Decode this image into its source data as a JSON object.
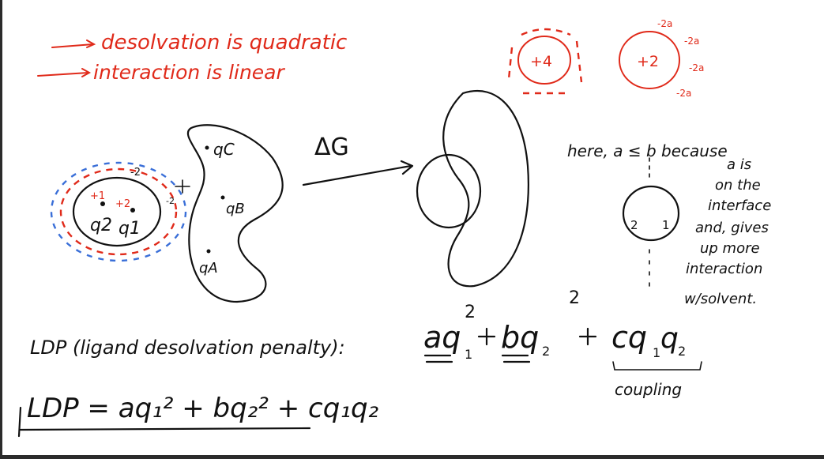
{
  "notes": {
    "line1": "desolvation is quadratic",
    "line2": "interaction is linear"
  },
  "charges": {
    "plus4": "+4",
    "plus2": "+2",
    "minus2a": "-2a"
  },
  "ligand": {
    "q1_label": "q1",
    "q2_label": "q2",
    "plus1": "+1",
    "plus2": "+2",
    "minus2": "-2"
  },
  "protein": {
    "qc": "qC",
    "qb": "qB",
    "qa": "qA"
  },
  "arrow_label": "ΔG",
  "explanation": {
    "head": "here, a ≤ b because",
    "lines": [
      "a is",
      "on the",
      "interface",
      "and, gives",
      "up more",
      "interaction",
      "w/solvent."
    ]
  },
  "inset": {
    "left": "2",
    "right": "1"
  },
  "equations": {
    "ldp_label": "LDP (ligand desolvation penalty):",
    "ldp_expr_a": "aq",
    "ldp_expr_b": "bq",
    "ldp_expr_c": "cq",
    "sub1": "1",
    "sub2": "2",
    "sup2": "2",
    "coupling": "coupling",
    "ldp_line2": "LDP = aq₁² + bq₂² + cq₁q₂"
  }
}
